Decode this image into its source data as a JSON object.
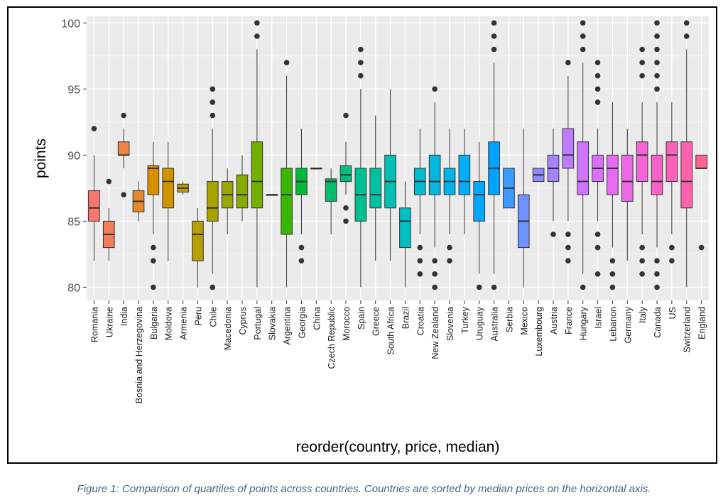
{
  "caption": "Figure 1: Comparison of quartiles of points across countries. Countries are sorted by median prices on the horizontal axis.",
  "chart_data": {
    "type": "boxplot",
    "xlabel": "reorder(country, price, median)",
    "ylabel": "points",
    "ylim": [
      79,
      100.5
    ],
    "yticks": [
      80,
      85,
      90,
      95,
      100
    ],
    "grid": true,
    "legend": "none",
    "boxes": [
      {
        "country": "Romania",
        "lower_whisker": 82,
        "q1": 85,
        "median": 86,
        "q3": 87.3,
        "upper_whisker": 90,
        "outliers": [
          92
        ],
        "color": "#F8766D"
      },
      {
        "country": "Ukraine",
        "lower_whisker": 82,
        "q1": 83,
        "median": 84,
        "q3": 85,
        "upper_whisker": 86,
        "outliers": [
          88
        ],
        "color": "#F47C5A"
      },
      {
        "country": "India",
        "lower_whisker": 89,
        "q1": 90,
        "median": 90,
        "q3": 91,
        "upper_whisker": 92,
        "outliers": [
          93,
          87
        ],
        "color": "#EE8344"
      },
      {
        "country": "Bosnia and Herzegovina",
        "lower_whisker": 85,
        "q1": 85.7,
        "median": 86.5,
        "q3": 87.3,
        "upper_whisker": 88,
        "outliers": [],
        "color": "#E58A27"
      },
      {
        "country": "Bulgaria",
        "lower_whisker": 84,
        "q1": 87,
        "median": 89,
        "q3": 89.2,
        "upper_whisker": 91,
        "outliers": [
          83,
          82,
          80
        ],
        "color": "#DB8E00"
      },
      {
        "country": "Moldova",
        "lower_whisker": 82,
        "q1": 86,
        "median": 88,
        "q3": 89,
        "upper_whisker": 91,
        "outliers": [],
        "color": "#D09400"
      },
      {
        "country": "Armenia",
        "lower_whisker": 87,
        "q1": 87.2,
        "median": 87.5,
        "q3": 87.8,
        "upper_whisker": 88,
        "outliers": [],
        "color": "#C49A00"
      },
      {
        "country": "Peru",
        "lower_whisker": 80,
        "q1": 82,
        "median": 84,
        "q3": 85,
        "upper_whisker": 86,
        "outliers": [],
        "color": "#B79F00"
      },
      {
        "country": "Chile",
        "lower_whisker": 81,
        "q1": 85,
        "median": 86,
        "q3": 88,
        "upper_whisker": 92,
        "outliers": [
          95,
          94,
          93,
          80
        ],
        "color": "#A8A300"
      },
      {
        "country": "Macedonia",
        "lower_whisker": 84,
        "q1": 86,
        "median": 87,
        "q3": 88,
        "upper_whisker": 89,
        "outliers": [],
        "color": "#98A800"
      },
      {
        "country": "Cyprus",
        "lower_whisker": 85,
        "q1": 86,
        "median": 87,
        "q3": 88.5,
        "upper_whisker": 90,
        "outliers": [],
        "color": "#86AC00"
      },
      {
        "country": "Portugal",
        "lower_whisker": 80,
        "q1": 86,
        "median": 88,
        "q3": 91,
        "upper_whisker": 98,
        "outliers": [
          100,
          99
        ],
        "color": "#72AF00"
      },
      {
        "country": "Slovakia",
        "lower_whisker": 87,
        "q1": 87,
        "median": 87,
        "q3": 87,
        "upper_whisker": 87,
        "outliers": [],
        "color": "#59B300"
      },
      {
        "country": "Argentina",
        "lower_whisker": 80,
        "q1": 84,
        "median": 87,
        "q3": 89,
        "upper_whisker": 96,
        "outliers": [
          97
        ],
        "color": "#39B600"
      },
      {
        "country": "Georgia",
        "lower_whisker": 84,
        "q1": 87,
        "median": 88,
        "q3": 89,
        "upper_whisker": 92,
        "outliers": [
          83,
          82
        ],
        "color": "#00BA38"
      },
      {
        "country": "China",
        "lower_whisker": 89,
        "q1": 89,
        "median": 89,
        "q3": 89,
        "upper_whisker": 89,
        "outliers": [],
        "color": "#00BC55"
      },
      {
        "country": "Czech Republic",
        "lower_whisker": 84,
        "q1": 86.5,
        "median": 88,
        "q3": 88.2,
        "upper_whisker": 89,
        "outliers": [],
        "color": "#00BE6C"
      },
      {
        "country": "Morocco",
        "lower_whisker": 87,
        "q1": 88,
        "median": 88.5,
        "q3": 89.2,
        "upper_whisker": 91,
        "outliers": [
          93,
          86,
          85
        ],
        "color": "#00BF7F"
      },
      {
        "country": "Spain",
        "lower_whisker": 80,
        "q1": 85,
        "median": 87,
        "q3": 89,
        "upper_whisker": 95,
        "outliers": [
          98,
          97,
          96
        ],
        "color": "#00C091"
      },
      {
        "country": "Greece",
        "lower_whisker": 82,
        "q1": 86,
        "median": 87,
        "q3": 89,
        "upper_whisker": 93,
        "outliers": [],
        "color": "#00C0A2"
      },
      {
        "country": "South Africa",
        "lower_whisker": 82,
        "q1": 86,
        "median": 88,
        "q3": 90,
        "upper_whisker": 95,
        "outliers": [],
        "color": "#00C0B2"
      },
      {
        "country": "Brazil",
        "lower_whisker": 80,
        "q1": 83,
        "median": 85,
        "q3": 86,
        "upper_whisker": 88,
        "outliers": [],
        "color": "#00BFC1"
      },
      {
        "country": "Croatia",
        "lower_whisker": 84,
        "q1": 87,
        "median": 88,
        "q3": 89,
        "upper_whisker": 92,
        "outliers": [
          83,
          82,
          81
        ],
        "color": "#00BCD0"
      },
      {
        "country": "New Zealand",
        "lower_whisker": 83,
        "q1": 87,
        "median": 88,
        "q3": 90,
        "upper_whisker": 94,
        "outliers": [
          95,
          82,
          81,
          80
        ],
        "color": "#00B9DD"
      },
      {
        "country": "Slovenia",
        "lower_whisker": 84,
        "q1": 87,
        "median": 88,
        "q3": 89,
        "upper_whisker": 92,
        "outliers": [
          83,
          82
        ],
        "color": "#00B4EA"
      },
      {
        "country": "Turkey",
        "lower_whisker": 84,
        "q1": 87,
        "median": 88,
        "q3": 90,
        "upper_whisker": 92,
        "outliers": [],
        "color": "#00AFF5"
      },
      {
        "country": "Uruguay",
        "lower_whisker": 81,
        "q1": 85,
        "median": 87,
        "q3": 88,
        "upper_whisker": 91,
        "outliers": [
          80
        ],
        "color": "#00A9FF"
      },
      {
        "country": "Australia",
        "lower_whisker": 81,
        "q1": 87,
        "median": 89,
        "q3": 91,
        "upper_whisker": 97,
        "outliers": [
          100,
          99,
          98,
          80
        ],
        "color": "#00A2FF"
      },
      {
        "country": "Serbia",
        "lower_whisker": 86,
        "q1": 86,
        "median": 87.5,
        "q3": 89,
        "upper_whisker": 89,
        "outliers": [],
        "color": "#3D9AFF"
      },
      {
        "country": "Mexico",
        "lower_whisker": 80,
        "q1": 83,
        "median": 85,
        "q3": 87,
        "upper_whisker": 92,
        "outliers": [],
        "color": "#6E92FF"
      },
      {
        "country": "Luxembourg",
        "lower_whisker": 88,
        "q1": 88,
        "median": 88.5,
        "q3": 89,
        "upper_whisker": 89,
        "outliers": [],
        "color": "#8E8AFF"
      },
      {
        "country": "Austria",
        "lower_whisker": 85,
        "q1": 88,
        "median": 89,
        "q3": 90,
        "upper_whisker": 92,
        "outliers": [
          84
        ],
        "color": "#A782FF"
      },
      {
        "country": "France",
        "lower_whisker": 85,
        "q1": 89,
        "median": 90,
        "q3": 92,
        "upper_whisker": 96,
        "outliers": [
          97,
          84,
          83,
          82
        ],
        "color": "#BC7CFF"
      },
      {
        "country": "Hungary",
        "lower_whisker": 81,
        "q1": 87,
        "median": 88,
        "q3": 91,
        "upper_whisker": 97,
        "outliers": [
          100,
          99,
          98,
          80
        ],
        "color": "#CD75FF"
      },
      {
        "country": "Israel",
        "lower_whisker": 85,
        "q1": 88,
        "median": 89,
        "q3": 90,
        "upper_whisker": 92,
        "outliers": [
          97,
          96,
          95,
          94,
          84,
          83,
          81
        ],
        "color": "#DA6FFB"
      },
      {
        "country": "Lebanon",
        "lower_whisker": 83,
        "q1": 87,
        "median": 89,
        "q3": 90,
        "upper_whisker": 94,
        "outliers": [
          82,
          81,
          80
        ],
        "color": "#E56CF1"
      },
      {
        "country": "Germany",
        "lower_whisker": 82,
        "q1": 86.5,
        "median": 88,
        "q3": 90,
        "upper_whisker": 92,
        "outliers": [],
        "color": "#EE67E5"
      },
      {
        "country": "Italy",
        "lower_whisker": 84,
        "q1": 88,
        "median": 90,
        "q3": 91,
        "upper_whisker": 94,
        "outliers": [
          98,
          97,
          96,
          83,
          82,
          81
        ],
        "color": "#F564D9"
      },
      {
        "country": "Canada",
        "lower_whisker": 83,
        "q1": 87,
        "median": 88,
        "q3": 90,
        "upper_whisker": 94,
        "outliers": [
          100,
          99,
          98,
          97,
          96,
          95,
          82,
          81,
          80
        ],
        "color": "#FA62CB"
      },
      {
        "country": "US",
        "lower_whisker": 84,
        "q1": 88,
        "median": 90,
        "q3": 91,
        "upper_whisker": 94,
        "outliers": [
          83,
          82
        ],
        "color": "#FD61BC"
      },
      {
        "country": "Switzerland",
        "lower_whisker": 80,
        "q1": 86,
        "median": 88,
        "q3": 91,
        "upper_whisker": 98,
        "outliers": [
          100,
          99
        ],
        "color": "#FF61AD"
      },
      {
        "country": "England",
        "lower_whisker": 89,
        "q1": 89,
        "median": 89,
        "q3": 90,
        "upper_whisker": 90,
        "outliers": [
          83
        ],
        "color": "#FF6592"
      }
    ]
  }
}
